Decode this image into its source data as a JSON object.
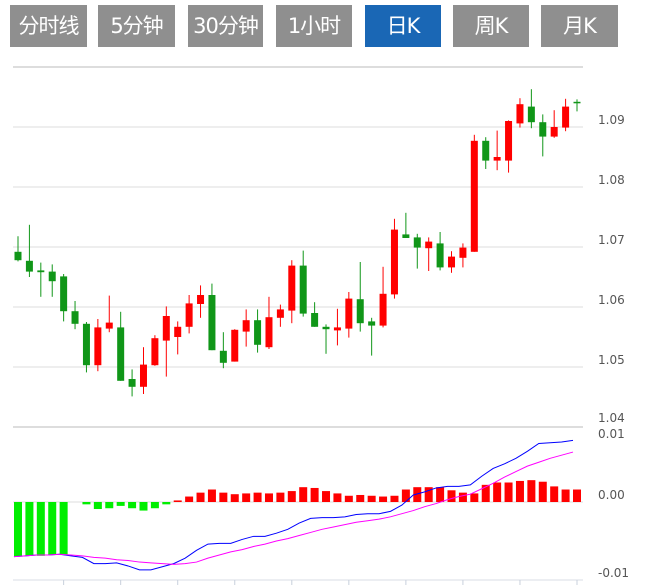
{
  "tabs": [
    {
      "label": "分时线",
      "active": false
    },
    {
      "label": "5分钟",
      "active": false
    },
    {
      "label": "30分钟",
      "active": false
    },
    {
      "label": "1小时",
      "active": false
    },
    {
      "label": "日K",
      "active": true
    },
    {
      "label": "周K",
      "active": false
    },
    {
      "label": "月K",
      "active": false
    }
  ],
  "colors": {
    "tab_bg": "#8f8f8f",
    "tab_active_bg": "#1a67b5",
    "up": "#ff0000",
    "down": "#109618",
    "hist_up": "#ff0000",
    "hist_down": "#00ee00",
    "dif": "#0000ff",
    "dea": "#ff00ff",
    "grid": "#dddddd"
  },
  "chart_data": [
    {
      "type": "candlestick",
      "title": "日K",
      "ylim": [
        1.04,
        1.1
      ],
      "yticks": [
        "1.09",
        "1.08",
        "1.07",
        "1.06",
        "1.05",
        "1.04"
      ],
      "ytick_values": [
        1.09,
        1.08,
        1.07,
        1.06,
        1.05,
        1.04
      ],
      "grid": true,
      "ohlc": [
        [
          1.0692,
          1.0718,
          1.0676,
          1.0678
        ],
        [
          1.0677,
          1.0737,
          1.065,
          1.0659
        ],
        [
          1.0661,
          1.0674,
          1.0617,
          1.0658
        ],
        [
          1.0659,
          1.0671,
          1.0617,
          1.0643
        ],
        [
          1.0651,
          1.0655,
          1.0576,
          1.0593
        ],
        [
          1.0593,
          1.061,
          1.0563,
          1.0572
        ],
        [
          1.0572,
          1.0575,
          1.0491,
          1.0503
        ],
        [
          1.0503,
          1.058,
          1.0493,
          1.0566
        ],
        [
          1.0564,
          1.0619,
          1.0558,
          1.0574
        ],
        [
          1.0566,
          1.0592,
          1.0477,
          1.0477
        ],
        [
          1.048,
          1.0496,
          1.0451,
          1.0467
        ],
        [
          1.0467,
          1.0533,
          1.0455,
          1.0504
        ],
        [
          1.0503,
          1.0553,
          1.0502,
          1.0548
        ],
        [
          1.0544,
          1.0601,
          1.0484,
          1.0585
        ],
        [
          1.055,
          1.0576,
          1.0521,
          1.0567
        ],
        [
          1.0567,
          1.062,
          1.0556,
          1.0606
        ],
        [
          1.0605,
          1.0636,
          1.0582,
          1.062
        ],
        [
          1.062,
          1.0639,
          1.0528,
          1.0528
        ],
        [
          1.0527,
          1.0558,
          1.0498,
          1.0507
        ],
        [
          1.0509,
          1.0563,
          1.0509,
          1.0562
        ],
        [
          1.0559,
          1.0596,
          1.0534,
          1.0578
        ],
        [
          1.0578,
          1.0596,
          1.0524,
          1.0537
        ],
        [
          1.0533,
          1.0617,
          1.053,
          1.0583
        ],
        [
          1.0582,
          1.0604,
          1.0567,
          1.0596
        ],
        [
          1.0594,
          1.0678,
          1.0573,
          1.0669
        ],
        [
          1.0669,
          1.0694,
          1.0584,
          1.0589
        ],
        [
          1.059,
          1.0608,
          1.0567,
          1.0567
        ],
        [
          1.0567,
          1.0571,
          1.0522,
          1.0563
        ],
        [
          1.0561,
          1.0597,
          1.0536,
          1.0566
        ],
        [
          1.0564,
          1.0625,
          1.0549,
          1.0614
        ],
        [
          1.0613,
          1.0675,
          1.0559,
          1.0573
        ],
        [
          1.0576,
          1.0582,
          1.0519,
          1.0569
        ],
        [
          1.0569,
          1.0667,
          1.0566,
          1.0622
        ],
        [
          1.0621,
          1.0747,
          1.0614,
          1.0729
        ],
        [
          1.0721,
          1.0757,
          1.0715,
          1.0715
        ],
        [
          1.0716,
          1.0722,
          1.0664,
          1.0699
        ],
        [
          1.0698,
          1.0716,
          1.066,
          1.0709
        ],
        [
          1.0706,
          1.0725,
          1.0661,
          1.0666
        ],
        [
          1.0666,
          1.0693,
          1.0657,
          1.0684
        ],
        [
          1.0682,
          1.0706,
          1.0666,
          1.0699
        ],
        [
          1.0692,
          1.0887,
          1.0692,
          1.0877
        ],
        [
          1.0877,
          1.0883,
          1.083,
          1.0844
        ],
        [
          1.0844,
          1.0894,
          1.0828,
          1.085
        ],
        [
          1.0844,
          1.0911,
          1.0824,
          1.091
        ],
        [
          1.0906,
          1.0948,
          1.0899,
          1.0938
        ],
        [
          1.0934,
          1.0963,
          1.0898,
          1.0908
        ],
        [
          1.0908,
          1.0921,
          1.0851,
          1.0884
        ],
        [
          1.0884,
          1.0928,
          1.0882,
          1.09
        ],
        [
          1.0899,
          1.0947,
          1.0893,
          1.0934
        ],
        [
          1.0942,
          1.0946,
          1.0926,
          1.094
        ]
      ]
    },
    {
      "type": "macd",
      "ylim": [
        -0.01,
        0.01
      ],
      "yticks": [
        "0.01",
        "0.00",
        "-0.01"
      ],
      "ytick_values": [
        0.01,
        0.0,
        -0.01
      ],
      "histogram": [
        -0.007,
        -0.0069,
        -0.0069,
        -0.0068,
        -0.0068,
        0,
        -0.0003,
        -0.0009,
        -0.0008,
        -0.0005,
        -0.0008,
        -0.0011,
        -0.0008,
        -0.0003,
        0.0002,
        0.0007,
        0.0012,
        0.0016,
        0.0012,
        0.001,
        0.0011,
        0.0012,
        0.0011,
        0.0012,
        0.0014,
        0.0019,
        0.0018,
        0.0014,
        0.0011,
        0.0008,
        0.0009,
        0.0008,
        0.0007,
        0.0008,
        0.0016,
        0.0019,
        0.0019,
        0.0019,
        0.0015,
        0.0012,
        0.0011,
        0.0022,
        0.0025,
        0.0025,
        0.0027,
        0.0028,
        0.0026,
        0.002,
        0.0016,
        0.0016
      ],
      "series": [
        {
          "name": "DIF",
          "values": [
            -0.007,
            -0.0069,
            -0.0068,
            -0.0068,
            -0.0067,
            -0.0069,
            -0.0071,
            -0.0079,
            -0.0079,
            -0.0078,
            -0.0082,
            -0.0087,
            -0.0087,
            -0.0083,
            -0.0079,
            -0.0072,
            -0.0062,
            -0.0054,
            -0.0053,
            -0.0053,
            -0.0048,
            -0.0044,
            -0.0044,
            -0.004,
            -0.0035,
            -0.0027,
            -0.0021,
            -0.002,
            -0.002,
            -0.0019,
            -0.0016,
            -0.0015,
            -0.0015,
            -0.0012,
            -0.0004,
            0.0009,
            0.0013,
            0.0018,
            0.002,
            0.002,
            0.0022,
            0.0033,
            0.0043,
            0.0049,
            0.0056,
            0.0065,
            0.0075,
            0.0076,
            0.0077,
            0.0079
          ]
        },
        {
          "name": "DEA",
          "values": [
            -0.007,
            -0.0069,
            -0.0068,
            -0.0068,
            -0.0067,
            -0.0068,
            -0.0069,
            -0.0071,
            -0.0072,
            -0.0074,
            -0.0075,
            -0.0077,
            -0.0078,
            -0.0079,
            -0.008,
            -0.0079,
            -0.0077,
            -0.0072,
            -0.0068,
            -0.0064,
            -0.0061,
            -0.0057,
            -0.0054,
            -0.005,
            -0.0047,
            -0.0043,
            -0.0039,
            -0.0035,
            -0.0032,
            -0.0029,
            -0.0026,
            -0.0024,
            -0.0022,
            -0.0019,
            -0.0015,
            -0.0011,
            -0.0006,
            -0.0002,
            0.0003,
            0.0007,
            0.001,
            0.0017,
            0.0024,
            0.0032,
            0.0039,
            0.0046,
            0.0051,
            0.0056,
            0.006,
            0.0064
          ]
        }
      ]
    }
  ]
}
